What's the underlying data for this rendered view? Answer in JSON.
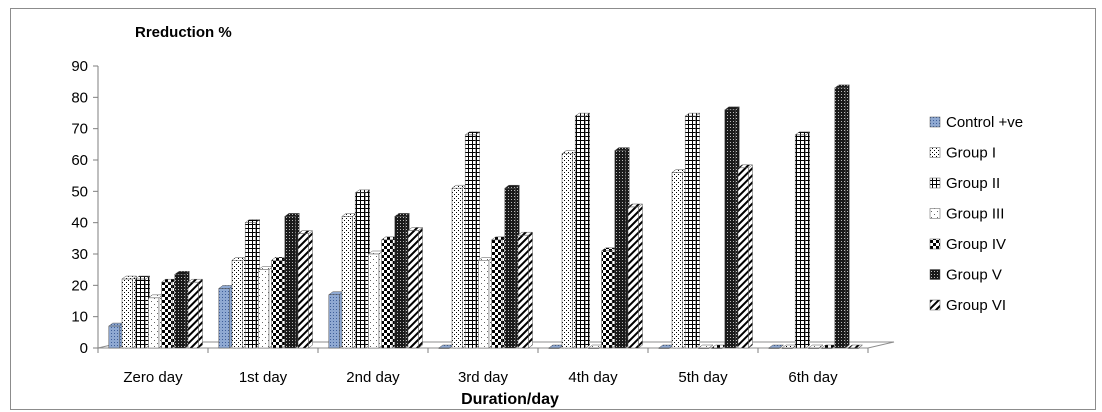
{
  "chart_data": {
    "type": "bar",
    "title": "Rreduction %",
    "xlabel": "Duration/day",
    "ylabel": "",
    "ylim": [
      0,
      90
    ],
    "yticks": [
      "0",
      "10",
      "20",
      "30",
      "40",
      "50",
      "60",
      "70",
      "80",
      "90"
    ],
    "categories": [
      "Zero day",
      "1st day",
      "2nd day",
      "3rd day",
      "4th day",
      "5th day",
      "6th day"
    ],
    "grid": false,
    "legend_position": "right",
    "series": [
      {
        "name": "Control +ve",
        "color": "#7f9cc9",
        "pattern": "dots-blue",
        "values": [
          7,
          19,
          17,
          0,
          0,
          0,
          0
        ]
      },
      {
        "name": "Group I",
        "color": "#000000",
        "pattern": "fine-dots",
        "values": [
          22,
          28,
          42,
          51,
          62,
          56,
          0
        ]
      },
      {
        "name": "Group II",
        "color": "#000000",
        "pattern": "grid",
        "values": [
          22,
          40,
          49.5,
          68,
          74,
          74,
          68
        ]
      },
      {
        "name": "Group III",
        "color": "#000000",
        "pattern": "sparse-dots",
        "values": [
          16,
          25,
          30,
          28,
          0,
          0,
          0
        ]
      },
      {
        "name": "Group IV",
        "color": "#000000",
        "pattern": "checker",
        "values": [
          21,
          28,
          34.5,
          34.5,
          31,
          0,
          0
        ]
      },
      {
        "name": "Group V",
        "color": "#000000",
        "pattern": "dense-dark",
        "values": [
          23.5,
          42,
          42,
          51,
          63,
          76,
          83
        ]
      },
      {
        "name": "Group VI",
        "color": "#000000",
        "pattern": "diagonal",
        "values": [
          21,
          36.5,
          37.5,
          36,
          45,
          57.5,
          0
        ]
      }
    ]
  }
}
